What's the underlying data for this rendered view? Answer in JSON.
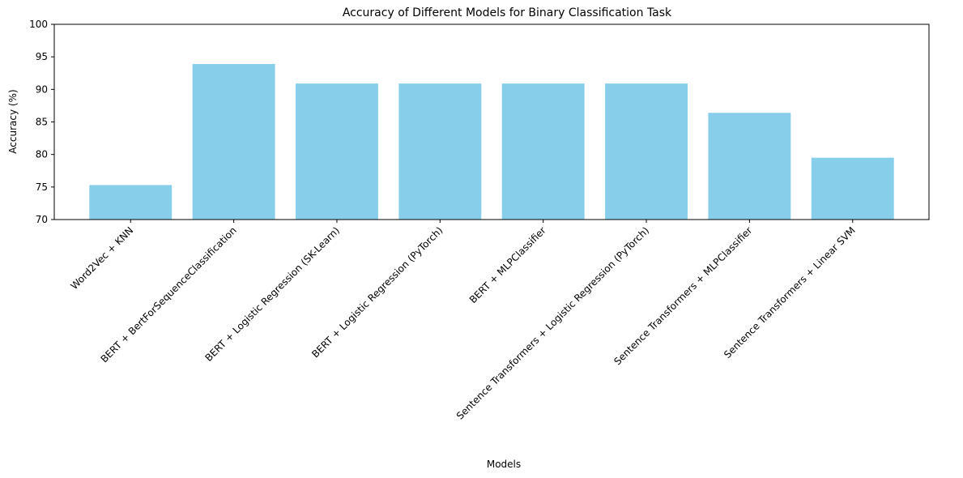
{
  "chart_data": {
    "type": "bar",
    "title": "Accuracy of Different Models for Binary Classification Task",
    "xlabel": "Models",
    "ylabel": "Accuracy (%)",
    "ylim": [
      70,
      100
    ],
    "yticks": [
      70,
      75,
      80,
      85,
      90,
      95,
      100
    ],
    "categories": [
      "Word2Vec + KNN",
      "BERT + BertForSequenceClassification",
      "BERT + Logistic Regression (SK-Learn)",
      "BERT + Logistic Regression (PyTorch)",
      "BERT + MLPClassifier",
      "Sentence Transformers + Logistic Regression (PyTorch)",
      "Sentence Transformers + MLPClassifier",
      "Sentence Transformers + Linear SVM"
    ],
    "values": [
      75.3,
      93.9,
      90.9,
      90.9,
      90.9,
      90.9,
      86.4,
      79.5
    ],
    "bar_color": "#87ceeb",
    "grid": false,
    "legend": "none"
  }
}
